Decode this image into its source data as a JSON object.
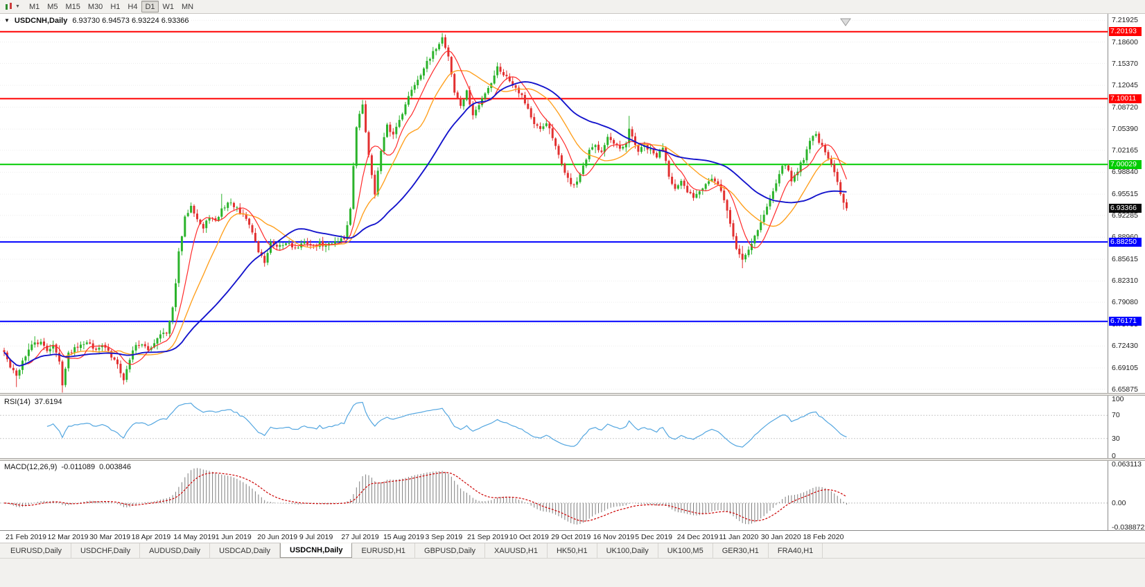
{
  "toolbar": {
    "timeframes": [
      "M1",
      "M5",
      "M15",
      "M30",
      "H1",
      "H4",
      "D1",
      "W1",
      "MN"
    ],
    "active_timeframe": "D1"
  },
  "chart": {
    "title_symbol": "USDCNH,Daily",
    "ohlc_text": "6.93730 6.94573 6.93224 6.93366",
    "current_price": "6.93366",
    "axis_ticks": [
      "7.21925",
      "7.18600",
      "7.15370",
      "7.12045",
      "7.08720",
      "7.05390",
      "7.02165",
      "6.98840",
      "6.95515",
      "6.92285",
      "6.88960",
      "6.85615",
      "6.82310",
      "6.79080",
      "6.75755",
      "6.72430",
      "6.69105",
      "6.65875"
    ]
  },
  "rsi": {
    "label": "RSI(14)",
    "value": "37.6194",
    "period": 14,
    "ticks": [
      "100",
      "70",
      "30",
      "0"
    ],
    "level_lines": [
      70,
      30
    ]
  },
  "macd": {
    "label": "MACD(12,26,9)",
    "main_value": "-0.011089",
    "signal_value": "0.003846",
    "scale": [
      -0.038872,
      0.063113
    ],
    "ticks": [
      "0.063113",
      "0.00",
      "-0.038872"
    ]
  },
  "time_axis": {
    "labels": [
      "21 Feb 2019",
      "12 Mar 2019",
      "30 Mar 2019",
      "18 Apr 2019",
      "14 May 2019",
      "1 Jun 2019",
      "20 Jun 2019",
      "9 Jul 2019",
      "27 Jul 2019",
      "15 Aug 2019",
      "3 Sep 2019",
      "21 Sep 2019",
      "10 Oct 2019",
      "29 Oct 2019",
      "16 Nov 2019",
      "5 Dec 2019",
      "24 Dec 2019",
      "11 Jan 2020",
      "30 Jan 2020",
      "18 Feb 2020"
    ]
  },
  "tabs": {
    "items": [
      "EURUSD,Daily",
      "USDCHF,Daily",
      "AUDUSD,Daily",
      "USDCAD,Daily",
      "USDCNH,Daily",
      "EURUSD,H1",
      "GBPUSD,Daily",
      "XAUUSD,H1",
      "HK50,H1",
      "UK100,Daily",
      "UK100,M5",
      "GER30,H1",
      "FRA40,H1"
    ],
    "active": "USDCNH,Daily"
  },
  "chart_data": {
    "type": "candlestick",
    "symbol": "USDCNH",
    "timeframe": "Daily",
    "current_ohlc": {
      "open": 6.9373,
      "high": 6.94573,
      "low": 6.93224,
      "close": 6.93366
    },
    "y_axis_range": [
      6.653,
      7.229
    ],
    "last_close": 6.93366,
    "colors": {
      "up": "#2bb32b",
      "down": "#e23030",
      "ma_fast": "#ff2a2a",
      "ma_mid": "#ffa01e",
      "ma_slow": "#1414cc",
      "rsi": "#53a6e0",
      "macd_hist": "#7d7d7d",
      "macd_signal": "#cc0000",
      "level_red": "#ff0000",
      "level_green": "#00cc00",
      "level_blue": "#0000ff",
      "current_badge": "#0a0a0a"
    },
    "ma_periods": {
      "fast": 8,
      "mid": 18,
      "slow": 40
    },
    "levels": [
      {
        "label": "7.20193",
        "price": 7.20193,
        "color": "#ff0000"
      },
      {
        "label": "7.10011",
        "price": 7.10011,
        "color": "#ff0000"
      },
      {
        "label": "7.00029",
        "price": 7.00029,
        "color": "#00cc00"
      },
      {
        "label": "6.88250",
        "price": 6.8825,
        "color": "#0000ff"
      },
      {
        "label": "6.76171",
        "price": 6.76171,
        "color": "#0000ff"
      }
    ],
    "wick_overrides": [
      [
        4,
        "low",
        6.662
      ],
      [
        19,
        "low",
        6.6535
      ],
      [
        71,
        "high",
        6.9555
      ],
      [
        143,
        "high",
        7.1965
      ],
      [
        204,
        "high",
        7.074
      ],
      [
        241,
        "low",
        6.8425
      ]
    ],
    "price_keyframes": [
      [
        0,
        6.715
      ],
      [
        2,
        6.692
      ],
      [
        4,
        6.678
      ],
      [
        6,
        6.702
      ],
      [
        8,
        6.718
      ],
      [
        10,
        6.73
      ],
      [
        12,
        6.728
      ],
      [
        14,
        6.718
      ],
      [
        16,
        6.726
      ],
      [
        18,
        6.7
      ],
      [
        19,
        6.668
      ],
      [
        21,
        6.712
      ],
      [
        23,
        6.722
      ],
      [
        25,
        6.728
      ],
      [
        27,
        6.732
      ],
      [
        29,
        6.72
      ],
      [
        31,
        6.724
      ],
      [
        33,
        6.722
      ],
      [
        35,
        6.708
      ],
      [
        37,
        6.7
      ],
      [
        39,
        6.672
      ],
      [
        41,
        6.705
      ],
      [
        43,
        6.728
      ],
      [
        45,
        6.725
      ],
      [
        47,
        6.718
      ],
      [
        49,
        6.73
      ],
      [
        51,
        6.745
      ],
      [
        53,
        6.742
      ],
      [
        55,
        6.78
      ],
      [
        57,
        6.865
      ],
      [
        59,
        6.918
      ],
      [
        61,
        6.94
      ],
      [
        63,
        6.918
      ],
      [
        65,
        6.902
      ],
      [
        67,
        6.922
      ],
      [
        69,
        6.912
      ],
      [
        71,
        6.932
      ],
      [
        73,
        6.942
      ],
      [
        75,
        6.938
      ],
      [
        77,
        6.925
      ],
      [
        79,
        6.918
      ],
      [
        81,
        6.898
      ],
      [
        83,
        6.868
      ],
      [
        85,
        6.852
      ],
      [
        87,
        6.88
      ],
      [
        89,
        6.872
      ],
      [
        91,
        6.878
      ],
      [
        93,
        6.882
      ],
      [
        95,
        6.872
      ],
      [
        97,
        6.878
      ],
      [
        99,
        6.882
      ],
      [
        101,
        6.875
      ],
      [
        103,
        6.88
      ],
      [
        105,
        6.876
      ],
      [
        107,
        6.882
      ],
      [
        109,
        6.886
      ],
      [
        111,
        6.888
      ],
      [
        113,
        6.932
      ],
      [
        115,
        7.058
      ],
      [
        117,
        7.092
      ],
      [
        119,
        7.012
      ],
      [
        121,
        6.958
      ],
      [
        123,
        7.02
      ],
      [
        125,
        7.058
      ],
      [
        127,
        7.045
      ],
      [
        129,
        7.07
      ],
      [
        131,
        7.09
      ],
      [
        133,
        7.115
      ],
      [
        135,
        7.13
      ],
      [
        137,
        7.148
      ],
      [
        139,
        7.16
      ],
      [
        141,
        7.178
      ],
      [
        143,
        7.193
      ],
      [
        145,
        7.165
      ],
      [
        147,
        7.11
      ],
      [
        149,
        7.09
      ],
      [
        151,
        7.11
      ],
      [
        153,
        7.075
      ],
      [
        155,
        7.09
      ],
      [
        157,
        7.11
      ],
      [
        159,
        7.125
      ],
      [
        161,
        7.148
      ],
      [
        163,
        7.138
      ],
      [
        165,
        7.128
      ],
      [
        167,
        7.118
      ],
      [
        169,
        7.105
      ],
      [
        171,
        7.085
      ],
      [
        173,
        7.06
      ],
      [
        175,
        7.052
      ],
      [
        177,
        7.065
      ],
      [
        179,
        7.04
      ],
      [
        181,
        7.012
      ],
      [
        183,
        6.99
      ],
      [
        185,
        6.968
      ],
      [
        187,
        6.975
      ],
      [
        189,
        6.995
      ],
      [
        191,
        7.02
      ],
      [
        193,
        7.028
      ],
      [
        195,
        7.022
      ],
      [
        197,
        7.042
      ],
      [
        199,
        7.03
      ],
      [
        201,
        7.022
      ],
      [
        203,
        7.03
      ],
      [
        204,
        7.052
      ],
      [
        205,
        7.042
      ],
      [
        207,
        7.02
      ],
      [
        209,
        7.028
      ],
      [
        211,
        7.02
      ],
      [
        213,
        7.012
      ],
      [
        215,
        7.028
      ],
      [
        217,
        6.985
      ],
      [
        219,
        6.962
      ],
      [
        221,
        6.972
      ],
      [
        223,
        6.958
      ],
      [
        225,
        6.952
      ],
      [
        227,
        6.962
      ],
      [
        229,
        6.972
      ],
      [
        231,
        6.978
      ],
      [
        233,
        6.968
      ],
      [
        235,
        6.948
      ],
      [
        237,
        6.91
      ],
      [
        239,
        6.872
      ],
      [
        241,
        6.856
      ],
      [
        243,
        6.872
      ],
      [
        245,
        6.892
      ],
      [
        247,
        6.912
      ],
      [
        249,
        6.935
      ],
      [
        251,
        6.962
      ],
      [
        253,
        6.988
      ],
      [
        255,
        7.002
      ],
      [
        257,
        6.975
      ],
      [
        259,
        6.992
      ],
      [
        261,
        7.01
      ],
      [
        263,
        7.038
      ],
      [
        265,
        7.046
      ],
      [
        267,
        7.026
      ],
      [
        269,
        7.008
      ],
      [
        271,
        6.988
      ],
      [
        273,
        6.955
      ],
      [
        275,
        6.93366
      ]
    ]
  }
}
